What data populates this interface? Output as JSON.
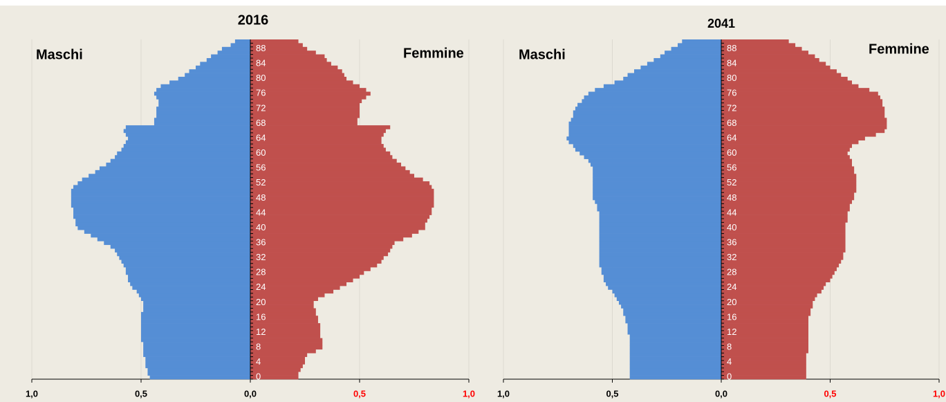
{
  "chart_data": [
    {
      "type": "pyramid",
      "title": "2016",
      "categories": [
        0,
        null,
        null,
        null,
        4,
        null,
        null,
        null,
        8,
        null,
        null,
        null,
        12,
        null,
        null,
        null,
        16,
        null,
        null,
        null,
        20,
        null,
        null,
        null,
        24,
        null,
        null,
        null,
        28,
        null,
        null,
        null,
        32,
        null,
        null,
        null,
        36,
        null,
        null,
        null,
        40,
        null,
        null,
        null,
        44,
        null,
        null,
        null,
        48,
        null,
        null,
        null,
        52,
        null,
        null,
        null,
        56,
        null,
        null,
        null,
        60,
        null,
        null,
        null,
        64,
        null,
        null,
        null,
        68,
        null,
        null,
        null,
        72,
        null,
        null,
        null,
        76,
        null,
        null,
        null,
        80,
        null,
        null,
        null,
        84,
        null,
        null,
        null,
        88,
        null,
        null
      ],
      "series": [
        {
          "name": "Maschi",
          "color": "#558ed5",
          "values": [
            0.46,
            0.47,
            0.47,
            0.48,
            0.48,
            0.48,
            0.49,
            0.49,
            0.49,
            0.49,
            0.5,
            0.5,
            0.5,
            0.5,
            0.5,
            0.5,
            0.5,
            0.5,
            0.49,
            0.49,
            0.49,
            0.5,
            0.51,
            0.52,
            0.54,
            0.55,
            0.56,
            0.56,
            0.57,
            0.57,
            0.58,
            0.59,
            0.6,
            0.61,
            0.62,
            0.64,
            0.67,
            0.7,
            0.73,
            0.76,
            0.79,
            0.8,
            0.8,
            0.81,
            0.81,
            0.81,
            0.82,
            0.82,
            0.82,
            0.82,
            0.82,
            0.81,
            0.79,
            0.77,
            0.74,
            0.71,
            0.69,
            0.66,
            0.64,
            0.62,
            0.61,
            0.59,
            0.58,
            0.57,
            0.56,
            0.57,
            0.58,
            0.57,
            0.44,
            0.44,
            0.43,
            0.43,
            0.43,
            0.42,
            0.42,
            0.43,
            0.44,
            0.43,
            0.41,
            0.37,
            0.33,
            0.3,
            0.28,
            0.25,
            0.23,
            0.2,
            0.18,
            0.15,
            0.13,
            0.09,
            0.07
          ]
        },
        {
          "name": "Femmine",
          "color": "#c0504d",
          "values": [
            0.22,
            0.22,
            0.23,
            0.24,
            0.25,
            0.25,
            0.26,
            0.3,
            0.33,
            0.33,
            0.33,
            0.32,
            0.32,
            0.32,
            0.32,
            0.31,
            0.31,
            0.3,
            0.3,
            0.29,
            0.29,
            0.31,
            0.34,
            0.38,
            0.41,
            0.44,
            0.47,
            0.5,
            0.52,
            0.55,
            0.58,
            0.6,
            0.61,
            0.63,
            0.64,
            0.65,
            0.66,
            0.7,
            0.74,
            0.77,
            0.8,
            0.8,
            0.81,
            0.82,
            0.83,
            0.83,
            0.84,
            0.84,
            0.84,
            0.84,
            0.84,
            0.83,
            0.82,
            0.79,
            0.75,
            0.73,
            0.71,
            0.69,
            0.67,
            0.65,
            0.64,
            0.62,
            0.61,
            0.6,
            0.6,
            0.61,
            0.62,
            0.64,
            0.49,
            0.49,
            0.5,
            0.5,
            0.5,
            0.5,
            0.51,
            0.53,
            0.55,
            0.53,
            0.5,
            0.47,
            0.44,
            0.43,
            0.42,
            0.4,
            0.37,
            0.35,
            0.34,
            0.3,
            0.26,
            0.24,
            0.22
          ]
        }
      ],
      "xlim": [
        0,
        1
      ],
      "xticks_male": [
        {
          "value": 1,
          "label": "1,0"
        },
        {
          "value": 0.5,
          "label": "0,5"
        },
        {
          "value": 0,
          "label": "0,0"
        }
      ],
      "xticks_female": [
        {
          "value": 0.5,
          "label": "0,5"
        },
        {
          "value": 1,
          "label": "1,0"
        }
      ],
      "female_tick_color": "#ff0000",
      "grid": true
    },
    {
      "type": "pyramid",
      "title": "2041",
      "categories": [
        0,
        null,
        null,
        null,
        4,
        null,
        null,
        null,
        8,
        null,
        null,
        null,
        12,
        null,
        null,
        null,
        16,
        null,
        null,
        null,
        20,
        null,
        null,
        null,
        24,
        null,
        null,
        null,
        28,
        null,
        null,
        null,
        32,
        null,
        null,
        null,
        36,
        null,
        null,
        null,
        40,
        null,
        null,
        null,
        44,
        null,
        null,
        null,
        48,
        null,
        null,
        null,
        52,
        null,
        null,
        null,
        56,
        null,
        null,
        null,
        60,
        null,
        null,
        null,
        64,
        null,
        null,
        null,
        68,
        null,
        null,
        null,
        72,
        null,
        null,
        null,
        76,
        null,
        null,
        null,
        80,
        null,
        null,
        null,
        84,
        null,
        null,
        null,
        88,
        null,
        null
      ],
      "series": [
        {
          "name": "Maschi",
          "color": "#558ed5",
          "values": [
            0.42,
            0.42,
            0.42,
            0.42,
            0.42,
            0.42,
            0.42,
            0.42,
            0.42,
            0.42,
            0.42,
            0.42,
            0.43,
            0.43,
            0.43,
            0.44,
            0.44,
            0.45,
            0.45,
            0.46,
            0.47,
            0.48,
            0.49,
            0.5,
            0.52,
            0.53,
            0.54,
            0.54,
            0.55,
            0.55,
            0.56,
            0.56,
            0.56,
            0.56,
            0.56,
            0.56,
            0.56,
            0.56,
            0.56,
            0.56,
            0.56,
            0.56,
            0.56,
            0.56,
            0.56,
            0.57,
            0.57,
            0.58,
            0.59,
            0.59,
            0.59,
            0.59,
            0.59,
            0.59,
            0.59,
            0.59,
            0.59,
            0.6,
            0.61,
            0.63,
            0.65,
            0.67,
            0.68,
            0.7,
            0.71,
            0.7,
            0.7,
            0.7,
            0.7,
            0.69,
            0.68,
            0.68,
            0.67,
            0.66,
            0.64,
            0.63,
            0.61,
            0.58,
            0.54,
            0.49,
            0.45,
            0.43,
            0.4,
            0.37,
            0.34,
            0.31,
            0.28,
            0.26,
            0.23,
            0.2,
            0.18
          ]
        },
        {
          "name": "Femmine",
          "color": "#c0504d",
          "values": [
            0.39,
            0.39,
            0.39,
            0.39,
            0.39,
            0.39,
            0.39,
            0.4,
            0.4,
            0.4,
            0.4,
            0.4,
            0.4,
            0.4,
            0.4,
            0.4,
            0.4,
            0.41,
            0.41,
            0.42,
            0.42,
            0.43,
            0.44,
            0.46,
            0.47,
            0.48,
            0.5,
            0.51,
            0.52,
            0.53,
            0.54,
            0.55,
            0.56,
            0.56,
            0.57,
            0.57,
            0.57,
            0.57,
            0.57,
            0.57,
            0.57,
            0.57,
            0.58,
            0.58,
            0.58,
            0.59,
            0.59,
            0.6,
            0.61,
            0.61,
            0.62,
            0.62,
            0.62,
            0.62,
            0.62,
            0.61,
            0.61,
            0.6,
            0.6,
            0.59,
            0.58,
            0.59,
            0.6,
            0.63,
            0.66,
            0.71,
            0.75,
            0.76,
            0.76,
            0.76,
            0.75,
            0.75,
            0.75,
            0.74,
            0.74,
            0.73,
            0.72,
            0.68,
            0.63,
            0.6,
            0.58,
            0.55,
            0.53,
            0.5,
            0.48,
            0.45,
            0.43,
            0.4,
            0.37,
            0.34,
            0.31
          ]
        }
      ],
      "xlim": [
        0,
        1
      ],
      "xticks_male": [
        {
          "value": 1,
          "label": "1,0"
        },
        {
          "value": 0.5,
          "label": "0,5"
        },
        {
          "value": 0,
          "label": "0,0"
        }
      ],
      "xticks_female": [
        {
          "value": 0.5,
          "label": "0,5"
        },
        {
          "value": 1,
          "label": "1,0"
        }
      ],
      "female_tick_color": "#ff0000",
      "grid": true
    }
  ]
}
